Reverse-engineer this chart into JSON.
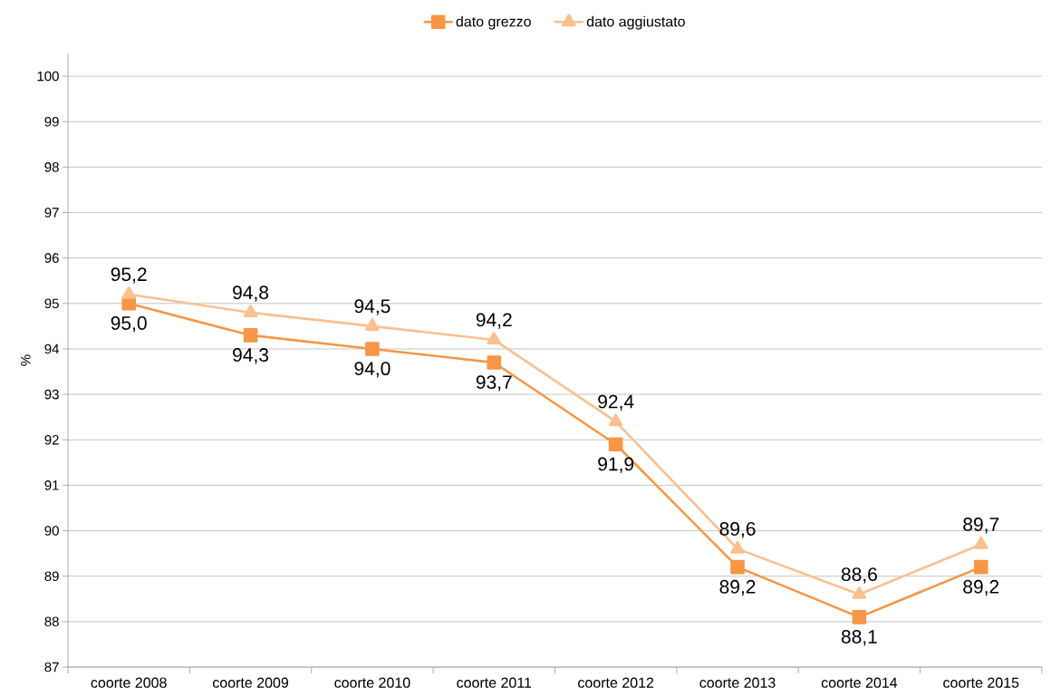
{
  "chart_data": {
    "type": "line",
    "ylabel": "%",
    "categories": [
      "coorte 2008",
      "coorte 2009",
      "coorte 2010",
      "coorte 2011",
      "coorte 2012",
      "coorte 2013",
      "coorte 2014",
      "coorte 2015"
    ],
    "series": [
      {
        "name": "dato grezzo",
        "color": "#f79646",
        "marker": "square",
        "values": [
          95.0,
          94.3,
          94.0,
          93.7,
          91.9,
          89.2,
          88.1,
          89.2
        ],
        "value_labels": [
          "95,0",
          "94,3",
          "94,0",
          "93,7",
          "91,9",
          "89,2",
          "88,1",
          "89,2"
        ]
      },
      {
        "name": "dato aggiustato",
        "color": "#fac090",
        "marker": "triangle",
        "values": [
          95.2,
          94.8,
          94.5,
          94.2,
          92.4,
          89.6,
          88.6,
          89.7
        ],
        "value_labels": [
          "95,2",
          "94,8",
          "94,5",
          "94,2",
          "92,4",
          "89,6",
          "88,6",
          "89,7"
        ]
      }
    ],
    "ylim": [
      87,
      100.5
    ],
    "yticks": [
      87,
      88,
      89,
      90,
      91,
      92,
      93,
      94,
      95,
      96,
      97,
      98,
      99,
      100
    ],
    "grid": "y",
    "legend": "top"
  }
}
